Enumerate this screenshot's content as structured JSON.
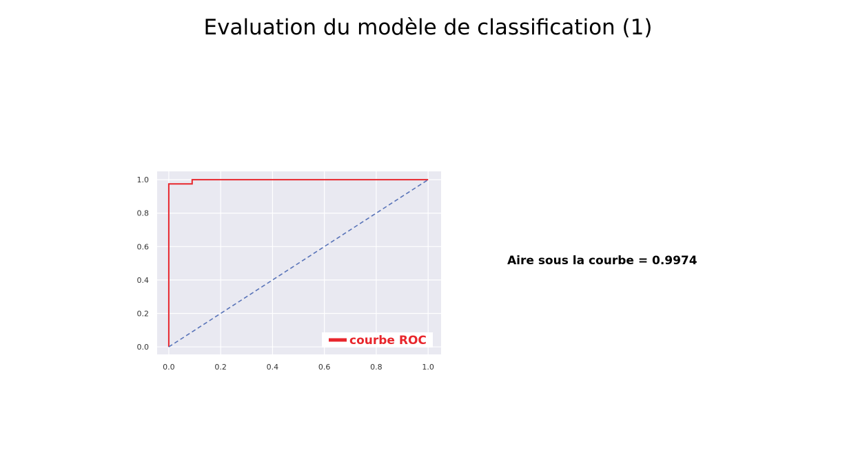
{
  "slide": {
    "title": "Evaluation du modèle de classification (1)"
  },
  "annotation": {
    "auc_text": "Aire sous la courbe = 0.9974"
  },
  "chart_data": {
    "type": "line",
    "title": "",
    "xlabel": "",
    "ylabel": "",
    "xlim": [
      -0.045,
      1.05
    ],
    "ylim": [
      -0.045,
      1.05
    ],
    "x_ticks": [
      0.0,
      0.2,
      0.4,
      0.6,
      0.8,
      1.0
    ],
    "y_ticks": [
      0.0,
      0.2,
      0.4,
      0.6,
      0.8,
      1.0
    ],
    "x_tick_labels": [
      "0.0",
      "0.2",
      "0.4",
      "0.6",
      "0.8",
      "1.0"
    ],
    "y_tick_labels": [
      "0.0",
      "0.2",
      "0.4",
      "0.6",
      "0.8",
      "1.0"
    ],
    "grid": true,
    "background": "#e9e9f1",
    "legend_position": "lower-right",
    "series": [
      {
        "name": "courbe ROC",
        "color": "#e8262c",
        "style": "solid",
        "x": [
          0.0,
          0.0,
          0.09,
          0.09,
          1.0
        ],
        "y": [
          0.0,
          0.975,
          0.975,
          1.0,
          1.0
        ]
      },
      {
        "color": "#5873b8",
        "style": "dashed",
        "x": [
          0.0,
          1.0
        ],
        "y": [
          0.0,
          1.0
        ]
      }
    ]
  }
}
